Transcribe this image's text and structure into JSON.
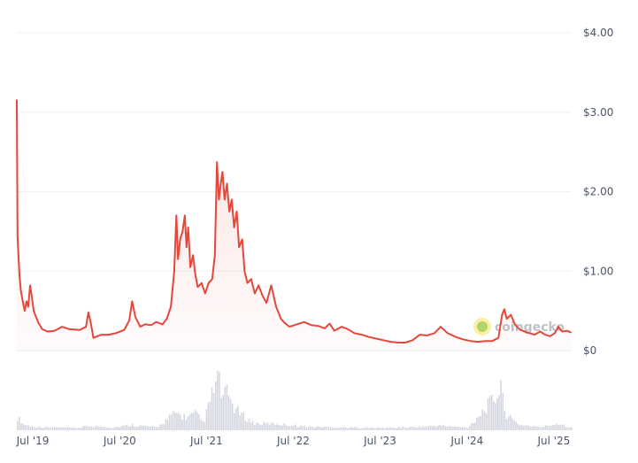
{
  "chart_data": {
    "type": "line",
    "watermark": "coingecko",
    "colors": {
      "line": "#e5473b",
      "area": "#e5473b",
      "volume": "#c7cad6",
      "grid": "#eef0f3",
      "text": "#4a5568"
    },
    "ylim": [
      0,
      4
    ],
    "y_ticks": [
      {
        "value": 0,
        "label": "$0"
      },
      {
        "value": 1,
        "label": "$1.00"
      },
      {
        "value": 2,
        "label": "$2.00"
      },
      {
        "value": 3,
        "label": "$3.00"
      },
      {
        "value": 4,
        "label": "$4.00"
      }
    ],
    "xlim": [
      "2019-04-25",
      "2025-09-10"
    ],
    "x_ticks": [
      {
        "value": "2019-07-01",
        "label": "Jul '19"
      },
      {
        "value": "2020-07-01",
        "label": "Jul '20"
      },
      {
        "value": "2021-07-01",
        "label": "Jul '21"
      },
      {
        "value": "2022-07-01",
        "label": "Jul '22"
      },
      {
        "value": "2023-07-01",
        "label": "Jul '23"
      },
      {
        "value": "2024-07-01",
        "label": "Jul '24"
      },
      {
        "value": "2025-07-01",
        "label": "Jul '25"
      }
    ],
    "series": [
      {
        "kind": "price",
        "points": [
          [
            "2019-04-25",
            3.15
          ],
          [
            "2019-04-28",
            1.45
          ],
          [
            "2019-05-02",
            1.2
          ],
          [
            "2019-05-06",
            0.95
          ],
          [
            "2019-05-12",
            0.75
          ],
          [
            "2019-05-20",
            0.62
          ],
          [
            "2019-05-28",
            0.5
          ],
          [
            "2019-06-05",
            0.62
          ],
          [
            "2019-06-12",
            0.55
          ],
          [
            "2019-06-20",
            0.82
          ],
          [
            "2019-06-26",
            0.7
          ],
          [
            "2019-07-05",
            0.5
          ],
          [
            "2019-07-15",
            0.42
          ],
          [
            "2019-07-25",
            0.35
          ],
          [
            "2019-08-10",
            0.27
          ],
          [
            "2019-09-01",
            0.24
          ],
          [
            "2019-10-01",
            0.25
          ],
          [
            "2019-11-01",
            0.3
          ],
          [
            "2019-12-01",
            0.27
          ],
          [
            "2020-01-15",
            0.26
          ],
          [
            "2020-02-10",
            0.3
          ],
          [
            "2020-02-20",
            0.48
          ],
          [
            "2020-03-01",
            0.35
          ],
          [
            "2020-03-12",
            0.16
          ],
          [
            "2020-04-15",
            0.2
          ],
          [
            "2020-05-15",
            0.2
          ],
          [
            "2020-06-15",
            0.22
          ],
          [
            "2020-07-20",
            0.26
          ],
          [
            "2020-08-10",
            0.38
          ],
          [
            "2020-08-22",
            0.62
          ],
          [
            "2020-09-05",
            0.42
          ],
          [
            "2020-09-25",
            0.3
          ],
          [
            "2020-10-15",
            0.33
          ],
          [
            "2020-11-10",
            0.32
          ],
          [
            "2020-12-01",
            0.36
          ],
          [
            "2020-12-28",
            0.33
          ],
          [
            "2021-01-15",
            0.4
          ],
          [
            "2021-02-01",
            0.55
          ],
          [
            "2021-02-15",
            1.0
          ],
          [
            "2021-02-24",
            1.7
          ],
          [
            "2021-03-03",
            1.15
          ],
          [
            "2021-03-12",
            1.4
          ],
          [
            "2021-03-22",
            1.5
          ],
          [
            "2021-04-01",
            1.7
          ],
          [
            "2021-04-08",
            1.3
          ],
          [
            "2021-04-15",
            1.55
          ],
          [
            "2021-04-24",
            1.05
          ],
          [
            "2021-05-05",
            1.2
          ],
          [
            "2021-05-15",
            0.95
          ],
          [
            "2021-05-25",
            0.8
          ],
          [
            "2021-06-10",
            0.85
          ],
          [
            "2021-06-25",
            0.72
          ],
          [
            "2021-07-10",
            0.85
          ],
          [
            "2021-07-25",
            0.9
          ],
          [
            "2021-08-05",
            1.2
          ],
          [
            "2021-08-14",
            2.37
          ],
          [
            "2021-08-22",
            1.9
          ],
          [
            "2021-08-30",
            2.1
          ],
          [
            "2021-09-06",
            2.25
          ],
          [
            "2021-09-15",
            1.9
          ],
          [
            "2021-09-25",
            2.1
          ],
          [
            "2021-10-05",
            1.75
          ],
          [
            "2021-10-15",
            1.9
          ],
          [
            "2021-10-25",
            1.55
          ],
          [
            "2021-11-05",
            1.75
          ],
          [
            "2021-11-15",
            1.3
          ],
          [
            "2021-11-28",
            1.4
          ],
          [
            "2021-12-08",
            1.0
          ],
          [
            "2021-12-20",
            0.85
          ],
          [
            "2022-01-05",
            0.9
          ],
          [
            "2022-01-20",
            0.72
          ],
          [
            "2022-02-05",
            0.82
          ],
          [
            "2022-02-20",
            0.7
          ],
          [
            "2022-03-10",
            0.6
          ],
          [
            "2022-03-30",
            0.82
          ],
          [
            "2022-04-20",
            0.55
          ],
          [
            "2022-05-10",
            0.4
          ],
          [
            "2022-05-25",
            0.35
          ],
          [
            "2022-06-15",
            0.3
          ],
          [
            "2022-07-15",
            0.33
          ],
          [
            "2022-08-15",
            0.36
          ],
          [
            "2022-09-15",
            0.32
          ],
          [
            "2022-10-15",
            0.31
          ],
          [
            "2022-11-10",
            0.28
          ],
          [
            "2022-12-01",
            0.34
          ],
          [
            "2022-12-20",
            0.25
          ],
          [
            "2023-01-20",
            0.3
          ],
          [
            "2023-02-15",
            0.27
          ],
          [
            "2023-03-15",
            0.22
          ],
          [
            "2023-04-15",
            0.2
          ],
          [
            "2023-05-15",
            0.17
          ],
          [
            "2023-06-15",
            0.15
          ],
          [
            "2023-07-15",
            0.13
          ],
          [
            "2023-08-15",
            0.11
          ],
          [
            "2023-09-15",
            0.1
          ],
          [
            "2023-10-15",
            0.1
          ],
          [
            "2023-11-15",
            0.13
          ],
          [
            "2023-12-15",
            0.2
          ],
          [
            "2024-01-15",
            0.19
          ],
          [
            "2024-02-15",
            0.22
          ],
          [
            "2024-03-12",
            0.3
          ],
          [
            "2024-04-10",
            0.22
          ],
          [
            "2024-05-15",
            0.17
          ],
          [
            "2024-06-15",
            0.14
          ],
          [
            "2024-07-15",
            0.12
          ],
          [
            "2024-08-15",
            0.11
          ],
          [
            "2024-09-15",
            0.12
          ],
          [
            "2024-10-15",
            0.12
          ],
          [
            "2024-11-10",
            0.16
          ],
          [
            "2024-11-25",
            0.45
          ],
          [
            "2024-12-05",
            0.52
          ],
          [
            "2024-12-15",
            0.4
          ],
          [
            "2025-01-01",
            0.45
          ],
          [
            "2025-01-20",
            0.32
          ],
          [
            "2025-02-10",
            0.26
          ],
          [
            "2025-03-01",
            0.24
          ],
          [
            "2025-03-20",
            0.22
          ],
          [
            "2025-04-10",
            0.2
          ],
          [
            "2025-05-05",
            0.24
          ],
          [
            "2025-05-25",
            0.2
          ],
          [
            "2025-06-15",
            0.18
          ],
          [
            "2025-07-05",
            0.22
          ],
          [
            "2025-07-20",
            0.3
          ],
          [
            "2025-08-05",
            0.24
          ],
          [
            "2025-08-25",
            0.25
          ],
          [
            "2025-09-10",
            0.23
          ]
        ]
      },
      {
        "kind": "volume",
        "points": [
          [
            "2019-04-25",
            0.22
          ],
          [
            "2019-05-20",
            0.1
          ],
          [
            "2019-07-01",
            0.06
          ],
          [
            "2019-09-01",
            0.05
          ],
          [
            "2020-01-01",
            0.04
          ],
          [
            "2020-02-20",
            0.07
          ],
          [
            "2020-06-01",
            0.05
          ],
          [
            "2020-08-20",
            0.09
          ],
          [
            "2020-12-01",
            0.05
          ],
          [
            "2021-02-20",
            0.3
          ],
          [
            "2021-03-10",
            0.25
          ],
          [
            "2021-04-05",
            0.22
          ],
          [
            "2021-05-15",
            0.28
          ],
          [
            "2021-06-15",
            0.12
          ],
          [
            "2021-08-14",
            0.9
          ],
          [
            "2021-09-05",
            0.55
          ],
          [
            "2021-09-25",
            0.62
          ],
          [
            "2021-10-20",
            0.4
          ],
          [
            "2021-11-25",
            0.25
          ],
          [
            "2022-01-15",
            0.12
          ],
          [
            "2022-05-10",
            0.1
          ],
          [
            "2022-09-01",
            0.06
          ],
          [
            "2023-01-01",
            0.05
          ],
          [
            "2023-06-01",
            0.04
          ],
          [
            "2023-11-01",
            0.05
          ],
          [
            "2024-03-12",
            0.08
          ],
          [
            "2024-07-01",
            0.04
          ],
          [
            "2024-11-25",
            0.7
          ],
          [
            "2024-12-10",
            0.25
          ],
          [
            "2025-02-01",
            0.1
          ],
          [
            "2025-05-01",
            0.05
          ],
          [
            "2025-07-20",
            0.12
          ],
          [
            "2025-09-10",
            0.04
          ]
        ]
      }
    ]
  }
}
